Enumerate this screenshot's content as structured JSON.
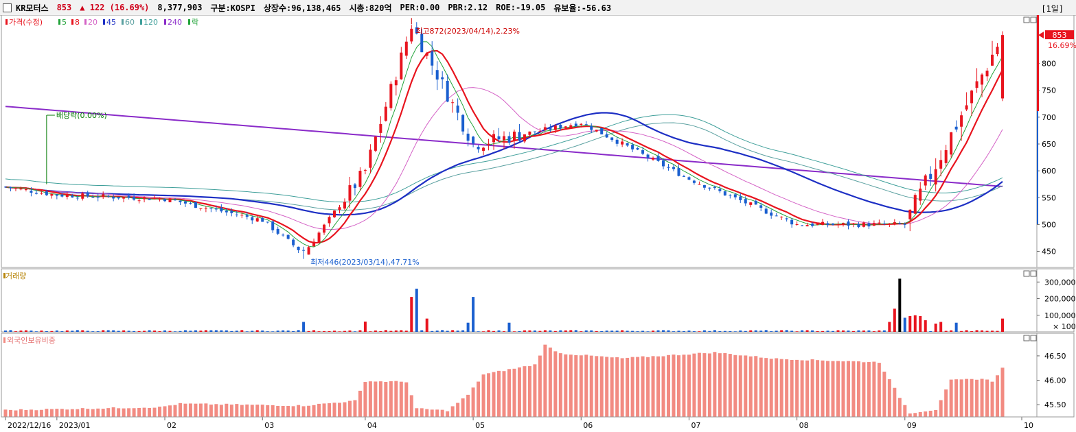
{
  "header": {
    "name": "KR모터스",
    "price": "853",
    "change": "▲ 122 (16.69%)",
    "volume": "8,377,903",
    "market": "구분:KOSPI",
    "shares": "상장수:96,138,465",
    "mktcap": "시총:820억",
    "per": "PER:0.00",
    "pbr": "PBR:2.12",
    "roe": "ROE:-19.05",
    "float": "유보율:-56.63",
    "period": "[1일]"
  },
  "colors": {
    "up": "#e8141e",
    "down": "#1a5fcf",
    "ma5": "#22a33a",
    "ma8": "#e8141e",
    "ma20": "#d462c6",
    "ma45": "#1d2fc4",
    "ma60": "#5aa0a0",
    "ma120": "#3f9f9a",
    "ma240": "#8a2bc9"
  },
  "price_panel": {
    "legend": [
      {
        "text": "가격(수정)",
        "color": "#e8141e"
      },
      {
        "text": "5",
        "color": "#22a33a"
      },
      {
        "text": "8",
        "color": "#e8141e"
      },
      {
        "text": "20",
        "color": "#d462c6"
      },
      {
        "text": "45",
        "color": "#1d2fc4"
      },
      {
        "text": "60",
        "color": "#5aa0a0"
      },
      {
        "text": "120",
        "color": "#3f9f9a"
      },
      {
        "text": "240",
        "color": "#8a2bc9"
      },
      {
        "text": "락",
        "color": "#22a33a"
      }
    ],
    "annotations": {
      "high": "최고872(2023/04/14),2.23%",
      "low": "최저446(2023/03/14),47.71%",
      "dividend": "배당락(0.00%)"
    },
    "current_price_tag": "853",
    "current_change_tag": "16.69%"
  },
  "volume_panel": {
    "title": "거래량",
    "ticks": [
      "300,000",
      "200,000",
      "100,000",
      "× 100"
    ]
  },
  "foreign_panel": {
    "title": "외국인보유비중",
    "ticks": [
      "46.50",
      "46.00",
      "45.50"
    ]
  },
  "x_labels": [
    "2022/12/16",
    "2023/01",
    "02",
    "03",
    "04",
    "05",
    "06",
    "07",
    "08",
    "09",
    "10"
  ],
  "chart_data": {
    "type": "candlestick",
    "price_axis": {
      "ticks": [
        450,
        500,
        550,
        600,
        650,
        700,
        750,
        800
      ],
      "ylim": [
        420,
        880
      ]
    },
    "key_points": [
      {
        "label": "2022/12/16",
        "close": 570
      },
      {
        "label": "2023/01",
        "close": 555
      },
      {
        "label": "02",
        "close": 548
      },
      {
        "label": "03",
        "close": 508
      },
      {
        "label": "2023/03/14",
        "close": 446
      },
      {
        "label": "04",
        "close": 600
      },
      {
        "label": "2023/04/14",
        "close": 872
      },
      {
        "label": "05",
        "close": 650
      },
      {
        "label": "06",
        "close": 690
      },
      {
        "label": "07",
        "close": 585
      },
      {
        "label": "08",
        "close": 500
      },
      {
        "label": "09",
        "close": 500
      },
      {
        "label": "last",
        "close": 853
      }
    ],
    "current_price": 853,
    "change_pct": 16.69,
    "volume_axis": {
      "ticks": [
        100000,
        200000,
        300000
      ]
    },
    "foreign_ratio_axis": {
      "ticks": [
        45.5,
        46.0,
        46.5
      ]
    }
  }
}
